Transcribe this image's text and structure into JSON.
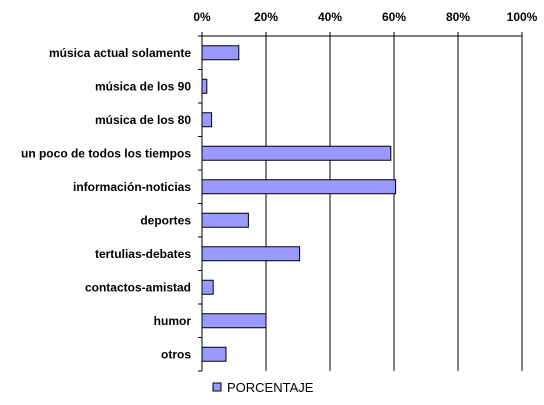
{
  "chart_data": {
    "type": "bar",
    "orientation": "horizontal",
    "categories": [
      "música actual solamente",
      "música de los 90",
      "música de los 80",
      "un poco de todos los tiempos",
      "información-noticias",
      "deportes",
      "tertulias-debates",
      "contactos-amistad",
      "humor",
      "otros"
    ],
    "series": [
      {
        "name": "PORCENTAJE",
        "values": [
          11.5,
          1.5,
          3,
          59,
          60.5,
          14.5,
          30.5,
          3.5,
          20,
          7.5
        ],
        "color": "#9999ff"
      }
    ],
    "x_ticks": [
      "0%",
      "20%",
      "40%",
      "60%",
      "80%",
      "100%"
    ],
    "xlim": [
      0,
      100
    ],
    "grid": true,
    "x_axis_position": "top",
    "legend": {
      "position": "bottom-left"
    }
  }
}
